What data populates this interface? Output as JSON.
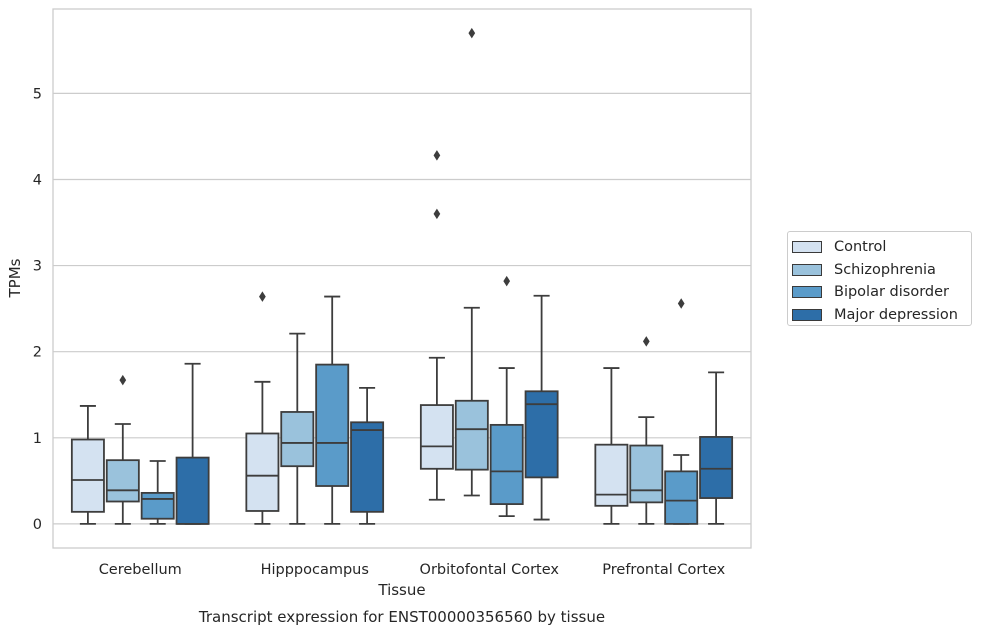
{
  "chart_data": {
    "type": "box",
    "caption": "Transcript expression for ENST00000356560 by tissue",
    "xlabel": "Tissue",
    "ylabel": "TPMs",
    "ylim": [
      -0.28,
      5.98
    ],
    "yticks": [
      0,
      1,
      2,
      3,
      4,
      5
    ],
    "grid": "horizontal",
    "legend_position": "right",
    "categories": [
      "Cerebellum",
      "Hipppocampus",
      "Orbitofontal Cortex",
      "Prefrontal Cortex"
    ],
    "series": [
      {
        "name": "Control",
        "color": "#d4e2f1",
        "boxes": [
          {
            "min": 0.0,
            "q1": 0.14,
            "median": 0.51,
            "q3": 0.98,
            "max": 1.37,
            "outliers": []
          },
          {
            "min": 0.0,
            "q1": 0.15,
            "median": 0.56,
            "q3": 1.05,
            "max": 1.65,
            "outliers": [
              2.64
            ]
          },
          {
            "min": 0.28,
            "q1": 0.64,
            "median": 0.9,
            "q3": 1.38,
            "max": 1.93,
            "outliers": [
              3.6,
              4.28
            ]
          },
          {
            "min": 0.0,
            "q1": 0.21,
            "median": 0.34,
            "q3": 0.92,
            "max": 1.81,
            "outliers": []
          }
        ]
      },
      {
        "name": "Schizophrenia",
        "color": "#9ac2dc",
        "boxes": [
          {
            "min": 0.0,
            "q1": 0.26,
            "median": 0.39,
            "q3": 0.74,
            "max": 1.16,
            "outliers": [
              1.67
            ]
          },
          {
            "min": 0.0,
            "q1": 0.67,
            "median": 0.94,
            "q3": 1.3,
            "max": 2.21,
            "outliers": []
          },
          {
            "min": 0.33,
            "q1": 0.63,
            "median": 1.1,
            "q3": 1.43,
            "max": 2.51,
            "outliers": [
              5.7
            ]
          },
          {
            "min": 0.0,
            "q1": 0.25,
            "median": 0.39,
            "q3": 0.91,
            "max": 1.24,
            "outliers": [
              2.12
            ]
          }
        ]
      },
      {
        "name": "Bipolar disorder",
        "color": "#5a9bc9",
        "boxes": [
          {
            "min": 0.0,
            "q1": 0.06,
            "median": 0.29,
            "q3": 0.36,
            "max": 0.73,
            "outliers": []
          },
          {
            "min": 0.0,
            "q1": 0.44,
            "median": 0.94,
            "q3": 1.85,
            "max": 2.64,
            "outliers": []
          },
          {
            "min": 0.09,
            "q1": 0.23,
            "median": 0.61,
            "q3": 1.15,
            "max": 1.81,
            "outliers": [
              2.82
            ]
          },
          {
            "min": 0.0,
            "q1": 0.0,
            "median": 0.27,
            "q3": 0.61,
            "max": 0.8,
            "outliers": [
              2.56
            ]
          }
        ]
      },
      {
        "name": "Major depression",
        "color": "#2d6ea8",
        "boxes": [
          {
            "min": 0.0,
            "q1": 0.0,
            "median": 0.0,
            "q3": 0.77,
            "max": 1.86,
            "outliers": []
          },
          {
            "min": 0.0,
            "q1": 0.14,
            "median": 1.09,
            "q3": 1.18,
            "max": 1.58,
            "outliers": []
          },
          {
            "min": 0.05,
            "q1": 0.54,
            "median": 1.39,
            "q3": 1.54,
            "max": 2.65,
            "outliers": []
          },
          {
            "min": 0.0,
            "q1": 0.3,
            "median": 0.64,
            "q3": 1.01,
            "max": 1.76,
            "outliers": []
          }
        ]
      }
    ]
  }
}
